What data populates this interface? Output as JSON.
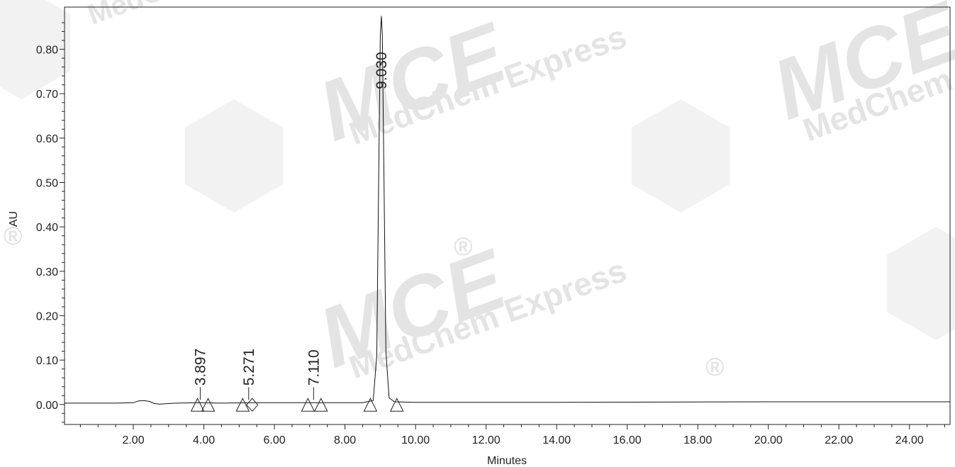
{
  "chart_data": {
    "type": "line",
    "title": "",
    "xlabel": "Minutes",
    "ylabel": "AU",
    "xlim": [
      0.05,
      25.15
    ],
    "ylim": [
      -0.045,
      0.895
    ],
    "grid": false,
    "x_ticks": [
      "2.00",
      "4.00",
      "6.00",
      "8.00",
      "10.00",
      "12.00",
      "14.00",
      "16.00",
      "18.00",
      "20.00",
      "22.00",
      "24.00"
    ],
    "y_ticks": [
      "0.00",
      "0.10",
      "0.20",
      "0.30",
      "0.40",
      "0.50",
      "0.60",
      "0.70",
      "0.80"
    ],
    "series": [
      {
        "x": [
          0.05,
          1.5,
          2.0,
          2.15,
          2.3,
          2.45,
          2.6,
          2.75,
          3.2,
          3.897,
          4.5,
          5.271,
          6.0,
          7.11,
          8.5,
          8.8,
          8.9,
          8.96,
          9.0,
          9.03,
          9.06,
          9.1,
          9.16,
          9.25,
          9.4,
          10.0,
          14.0,
          20.0,
          25.15
        ],
        "y": [
          0.003,
          0.003,
          0.004,
          0.008,
          0.009,
          0.007,
          0.002,
          0.001,
          0.003,
          0.004,
          0.003,
          0.004,
          0.004,
          0.004,
          0.004,
          0.009,
          0.11,
          0.55,
          0.83,
          0.875,
          0.83,
          0.55,
          0.12,
          0.015,
          0.006,
          0.005,
          0.005,
          0.006,
          0.006
        ]
      }
    ],
    "peaks": [
      {
        "label": "3.897",
        "rt": 3.897,
        "start": 3.82,
        "end": 4.12
      },
      {
        "label": "5.271",
        "rt": 5.271,
        "start": 5.1,
        "end": 5.37
      },
      {
        "label": "7.110",
        "rt": 7.11,
        "start": 6.95,
        "end": 7.32
      },
      {
        "label": "9.030",
        "rt": 9.03,
        "start": 8.72,
        "end": 9.47
      }
    ]
  },
  "watermark": {
    "brand": "MCE",
    "name": "MedChem Express",
    "registered": "®"
  }
}
